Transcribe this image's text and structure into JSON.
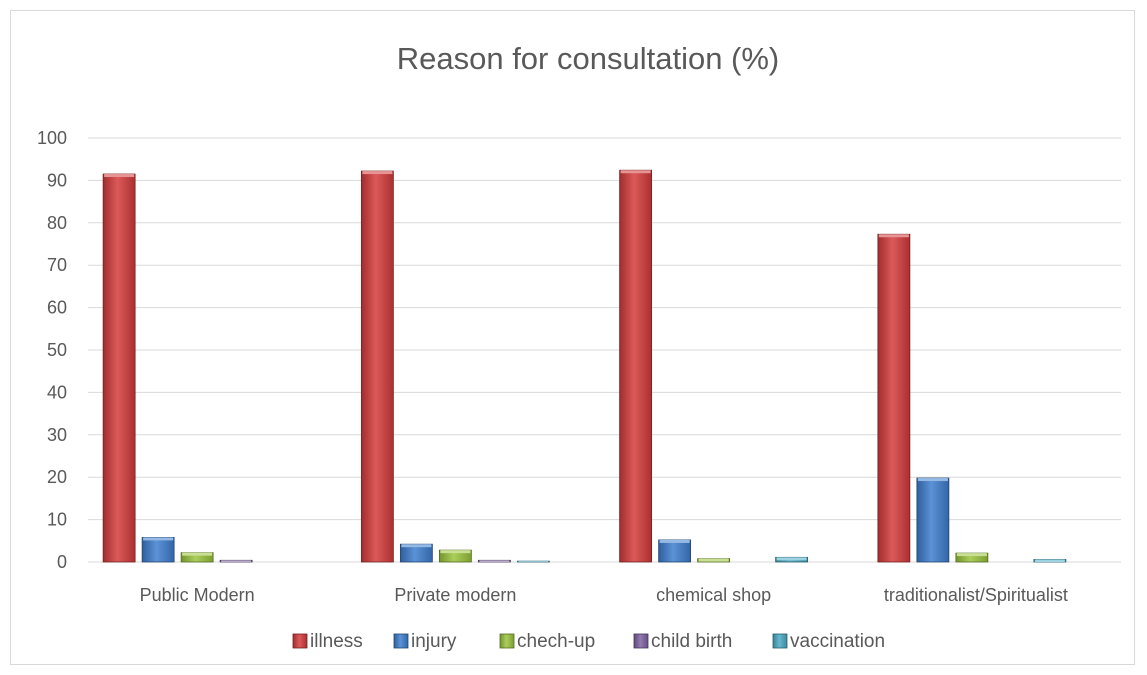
{
  "chart_data": {
    "type": "bar",
    "title": "Reason for consultation (%)",
    "xlabel": "",
    "ylabel": "",
    "ylim": [
      0,
      100
    ],
    "yticks": [
      "0",
      "10",
      "20",
      "30",
      "40",
      "50",
      "60",
      "70",
      "80",
      "90",
      "100"
    ],
    "grid": true,
    "legend_position": "bottom",
    "categories": [
      "Public Modern",
      "Private modern",
      "chemical shop",
      "traditionalist/Spiritualist"
    ],
    "series": [
      {
        "name": "illness",
        "color": "#d63c3c",
        "values": [
          91.5,
          92.2,
          92.4,
          77.3
        ]
      },
      {
        "name": "injury",
        "color": "#3f7fd0",
        "values": [
          5.8,
          4.2,
          5.2,
          19.8
        ]
      },
      {
        "name": "chech-up",
        "color": "#9bc53d",
        "values": [
          2.2,
          2.8,
          0.8,
          2.1
        ]
      },
      {
        "name": "child birth",
        "color": "#8064a2",
        "values": [
          0.4,
          0.4,
          0.0,
          0.0
        ]
      },
      {
        "name": "vaccination",
        "color": "#4bacc6",
        "values": [
          0.0,
          0.2,
          1.1,
          0.6
        ]
      }
    ]
  }
}
